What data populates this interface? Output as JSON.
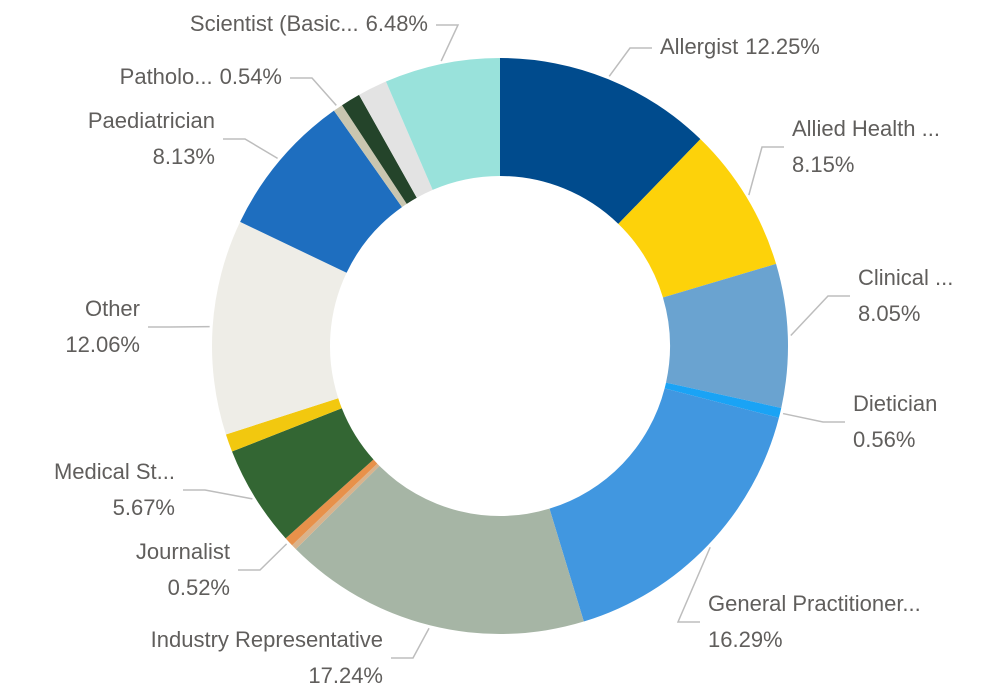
{
  "chart_data": {
    "type": "donut",
    "categories": [
      "Allergist",
      "Allied Health ...",
      "Clinical ...",
      "Dietician",
      "General Practitioner...",
      "Industry Representative",
      null,
      "Journalist",
      "Medical St...",
      null,
      "Other",
      "Paediatrician",
      "Patholo...",
      null,
      null,
      "Scientist (Basic..."
    ],
    "values": [
      12.25,
      8.15,
      8.05,
      0.56,
      16.29,
      17.24,
      0.3,
      0.52,
      5.67,
      1.0,
      12.06,
      8.13,
      0.54,
      1.1,
      1.66,
      6.48
    ],
    "value_labels": [
      "12.25%",
      "8.15%",
      "8.05%",
      "0.56%",
      "16.29%",
      "17.24%",
      null,
      "0.52%",
      "5.67%",
      null,
      "12.06%",
      "8.13%",
      "0.54%",
      null,
      null,
      "6.48%"
    ],
    "colors": [
      "#004b8d",
      "#fdd20a",
      "#6aa3d0",
      "#1aa3f5",
      "#4197e0",
      "#a6b5a5",
      "#d9b38c",
      "#e8914a",
      "#336633",
      "#f2c80f",
      "#eeede7",
      "#1e6ebf",
      "#c9c6b0",
      "#24442a",
      "#e3e3e3",
      "#99e2db"
    ]
  }
}
